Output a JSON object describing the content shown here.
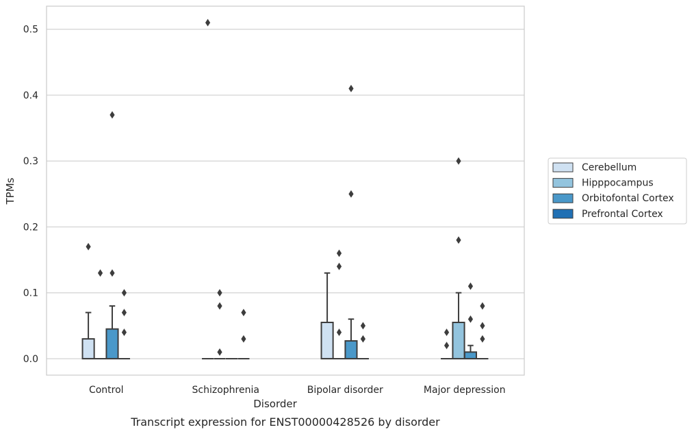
{
  "chart_data": {
    "type": "box",
    "title": "",
    "caption": "Transcript expression for ENST00000428526 by disorder",
    "xlabel": "Disorder",
    "ylabel": "TPMs",
    "ylim": [
      -0.025,
      0.535
    ],
    "yticks": [
      "0.0",
      "0.1",
      "0.2",
      "0.3",
      "0.4",
      "0.5"
    ],
    "ytick_values": [
      0.0,
      0.1,
      0.2,
      0.3,
      0.4,
      0.5
    ],
    "grid": true,
    "legend_position": "right",
    "categories": [
      "Control",
      "Schizophrenia",
      "Bipolar disorder",
      "Major depression"
    ],
    "series": [
      {
        "name": "Cerebellum",
        "color": "#cfe1f2",
        "boxes": [
          {
            "min": 0.0,
            "q1": 0.0,
            "median": 0.0,
            "q3": 0.03,
            "max": 0.07,
            "outliers": [
              0.17
            ]
          },
          {
            "min": 0.0,
            "q1": 0.0,
            "median": 0.0,
            "q3": 0.0,
            "max": 0.0,
            "outliers": [
              0.51
            ]
          },
          {
            "min": 0.0,
            "q1": 0.0,
            "median": 0.0,
            "q3": 0.055,
            "max": 0.13,
            "outliers": []
          },
          {
            "min": 0.0,
            "q1": 0.0,
            "median": 0.0,
            "q3": 0.0,
            "max": 0.0,
            "outliers": [
              0.02,
              0.04
            ]
          }
        ]
      },
      {
        "name": "Hipppocampus",
        "color": "#93c4de",
        "boxes": [
          {
            "min": 0.0,
            "q1": 0.0,
            "median": 0.0,
            "q3": 0.0,
            "max": 0.0,
            "outliers": [
              0.13
            ]
          },
          {
            "min": 0.0,
            "q1": 0.0,
            "median": 0.0,
            "q3": 0.0,
            "max": 0.0,
            "outliers": [
              0.01,
              0.08,
              0.1
            ]
          },
          {
            "min": 0.0,
            "q1": 0.0,
            "median": 0.0,
            "q3": 0.0,
            "max": 0.0,
            "outliers": [
              0.04,
              0.14,
              0.16
            ]
          },
          {
            "min": 0.0,
            "q1": 0.0,
            "median": 0.0,
            "q3": 0.055,
            "max": 0.1,
            "outliers": [
              0.18,
              0.3
            ]
          }
        ]
      },
      {
        "name": "Orbitofontal Cortex",
        "color": "#4a98c9",
        "boxes": [
          {
            "min": 0.0,
            "q1": 0.0,
            "median": 0.0,
            "q3": 0.045,
            "max": 0.08,
            "outliers": [
              0.13,
              0.37
            ]
          },
          {
            "min": 0.0,
            "q1": 0.0,
            "median": 0.0,
            "q3": 0.0,
            "max": 0.0,
            "outliers": []
          },
          {
            "min": 0.0,
            "q1": 0.0,
            "median": 0.0,
            "q3": 0.027,
            "max": 0.06,
            "outliers": [
              0.25,
              0.41
            ]
          },
          {
            "min": 0.0,
            "q1": 0.0,
            "median": 0.0,
            "q3": 0.01,
            "max": 0.02,
            "outliers": [
              0.06,
              0.11
            ]
          }
        ]
      },
      {
        "name": "Prefrontal Cortex",
        "color": "#2070b4",
        "boxes": [
          {
            "min": 0.0,
            "q1": 0.0,
            "median": 0.0,
            "q3": 0.0,
            "max": 0.0,
            "outliers": [
              0.04,
              0.07,
              0.1
            ]
          },
          {
            "min": 0.0,
            "q1": 0.0,
            "median": 0.0,
            "q3": 0.0,
            "max": 0.0,
            "outliers": [
              0.03,
              0.07
            ]
          },
          {
            "min": 0.0,
            "q1": 0.0,
            "median": 0.0,
            "q3": 0.0,
            "max": 0.0,
            "outliers": [
              0.03,
              0.05
            ]
          },
          {
            "min": 0.0,
            "q1": 0.0,
            "median": 0.0,
            "q3": 0.0,
            "max": 0.0,
            "outliers": [
              0.03,
              0.05,
              0.08
            ]
          }
        ]
      }
    ]
  }
}
